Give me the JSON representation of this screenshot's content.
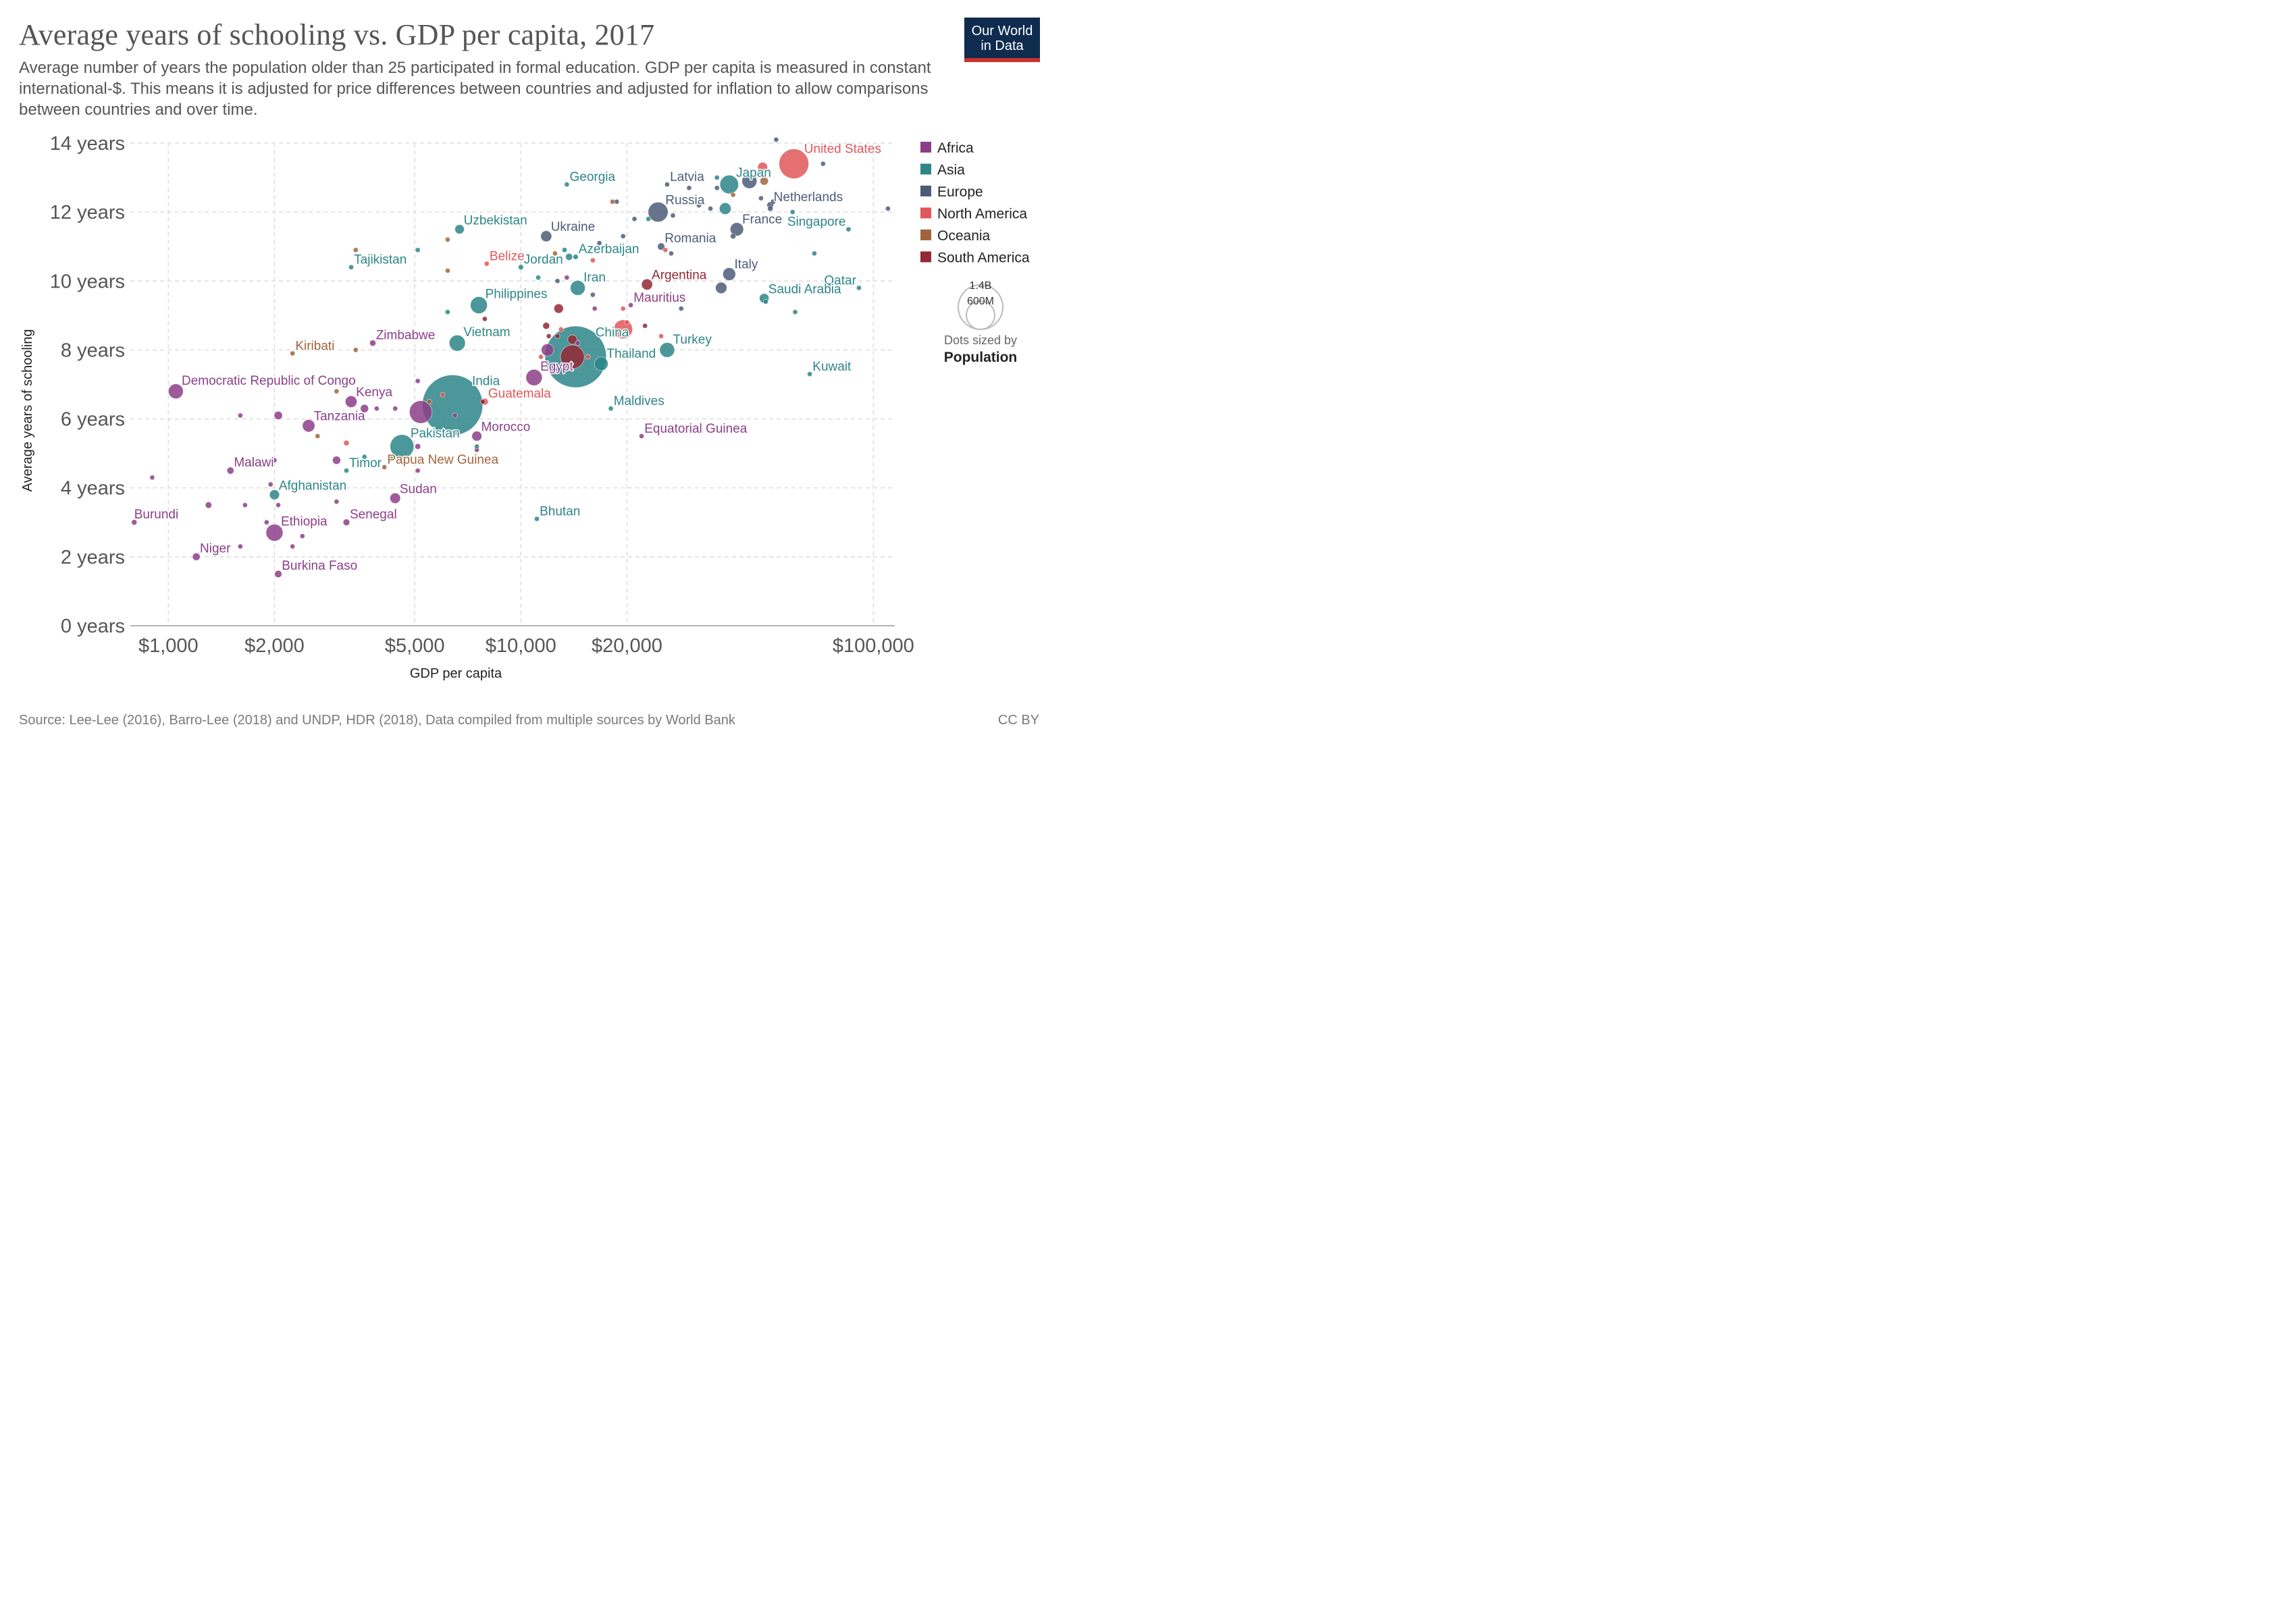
{
  "title": "Average years of schooling vs. GDP per capita, 2017",
  "subtitle": "Average number of years the population older than 25 participated in formal education. GDP per capita is measured in constant international-$. This means it is adjusted for price differences between countries and adjusted for inflation to allow comparisons between countries and over time.",
  "logo": {
    "line1": "Our World",
    "line2": "in Data"
  },
  "source": "Source: Lee-Lee (2016), Barro-Lee (2018) and UNDP, HDR (2018), Data compiled from multiple sources by World Bank",
  "license": "CC BY",
  "size_legend": {
    "large_label": "1.4B",
    "small_label": "600M",
    "note": "Dots sized by",
    "note_bold": "Population"
  },
  "chart_data": {
    "type": "scatter",
    "xlabel": "GDP per capita",
    "ylabel": "Average years of schooling",
    "x_scale": "log",
    "xlim": [
      780,
      115000
    ],
    "ylim": [
      0,
      14
    ],
    "x_ticks": [
      {
        "value": 1000,
        "label": "$1,000"
      },
      {
        "value": 2000,
        "label": "$2,000"
      },
      {
        "value": 5000,
        "label": "$5,000"
      },
      {
        "value": 10000,
        "label": "$10,000"
      },
      {
        "value": 20000,
        "label": "$20,000"
      },
      {
        "value": 100000,
        "label": "$100,000"
      }
    ],
    "y_ticks": [
      {
        "value": 0,
        "label": "0 years"
      },
      {
        "value": 2,
        "label": "2 years"
      },
      {
        "value": 4,
        "label": "4 years"
      },
      {
        "value": 6,
        "label": "6 years"
      },
      {
        "value": 8,
        "label": "8 years"
      },
      {
        "value": 10,
        "label": "10 years"
      },
      {
        "value": 12,
        "label": "12 years"
      },
      {
        "value": 14,
        "label": "14 years"
      }
    ],
    "grid": true,
    "legend_position": "right",
    "regions": [
      {
        "name": "Africa",
        "color": "#8c3e88"
      },
      {
        "name": "Asia",
        "color": "#2d8587"
      },
      {
        "name": "Europe",
        "color": "#4c5c78"
      },
      {
        "name": "North America",
        "color": "#e15759"
      },
      {
        "name": "Oceania",
        "color": "#a2643c"
      },
      {
        "name": "South America",
        "color": "#932834"
      }
    ],
    "labeled_points": [
      {
        "label": "United States",
        "region": "North America",
        "x": 59500,
        "y": 13.4,
        "pop_m": 325
      },
      {
        "label": "Japan",
        "region": "Asia",
        "x": 39000,
        "y": 12.8,
        "pop_m": 127
      },
      {
        "label": "Latvia",
        "region": "Europe",
        "x": 26000,
        "y": 12.8,
        "pop_m": 2
      },
      {
        "label": "Georgia",
        "region": "Asia",
        "x": 13500,
        "y": 12.8,
        "pop_m": 4
      },
      {
        "label": "Netherlands",
        "region": "Europe",
        "x": 51000,
        "y": 12.2,
        "pop_m": 17
      },
      {
        "label": "Russia",
        "region": "Europe",
        "x": 24500,
        "y": 12.0,
        "pop_m": 145
      },
      {
        "label": "Uzbekistan",
        "region": "Asia",
        "x": 6700,
        "y": 11.5,
        "pop_m": 32
      },
      {
        "label": "Ukraine",
        "region": "Europe",
        "x": 11800,
        "y": 11.3,
        "pop_m": 44
      },
      {
        "label": "France",
        "region": "Europe",
        "x": 41000,
        "y": 11.5,
        "pop_m": 65
      },
      {
        "label": "Singapore",
        "region": "Asia",
        "x": 85000,
        "y": 11.5,
        "pop_m": 6
      },
      {
        "label": "Romania",
        "region": "Europe",
        "x": 25000,
        "y": 11.0,
        "pop_m": 19
      },
      {
        "label": "Tajikistan",
        "region": "Asia",
        "x": 3300,
        "y": 10.4,
        "pop_m": 9
      },
      {
        "label": "Belize",
        "region": "North America",
        "x": 8000,
        "y": 10.5,
        "pop_m": 0.4
      },
      {
        "label": "Jordan",
        "region": "Asia",
        "x": 10000,
        "y": 10.4,
        "pop_m": 10
      },
      {
        "label": "Azerbaijan",
        "region": "Asia",
        "x": 14300,
        "y": 10.7,
        "pop_m": 10
      },
      {
        "label": "Italy",
        "region": "Europe",
        "x": 39000,
        "y": 10.2,
        "pop_m": 60
      },
      {
        "label": "Qatar",
        "region": "Asia",
        "x": 91000,
        "y": 9.8,
        "pop_m": 3
      },
      {
        "label": "Iran",
        "region": "Asia",
        "x": 14500,
        "y": 9.8,
        "pop_m": 81
      },
      {
        "label": "Argentina",
        "region": "South America",
        "x": 22800,
        "y": 9.9,
        "pop_m": 44
      },
      {
        "label": "Saudi Arabia",
        "region": "Asia",
        "x": 49000,
        "y": 9.5,
        "pop_m": 33
      },
      {
        "label": "Philippines",
        "region": "Asia",
        "x": 7600,
        "y": 9.3,
        "pop_m": 105
      },
      {
        "label": "Mauritius",
        "region": "Africa",
        "x": 20500,
        "y": 9.3,
        "pop_m": 1.3
      },
      {
        "label": "China",
        "region": "Asia",
        "x": 14300,
        "y": 7.8,
        "pop_m": 1390
      },
      {
        "label": "Vietnam",
        "region": "Asia",
        "x": 6600,
        "y": 8.2,
        "pop_m": 95
      },
      {
        "label": "Turkey",
        "region": "Asia",
        "x": 26000,
        "y": 8.0,
        "pop_m": 81
      },
      {
        "label": "Zimbabwe",
        "region": "Africa",
        "x": 3800,
        "y": 8.2,
        "pop_m": 14
      },
      {
        "label": "Kiribati",
        "region": "Oceania",
        "x": 2250,
        "y": 7.9,
        "pop_m": 0.1
      },
      {
        "label": "Thailand",
        "region": "Asia",
        "x": 16900,
        "y": 7.6,
        "pop_m": 69
      },
      {
        "label": "Kuwait",
        "region": "Asia",
        "x": 66000,
        "y": 7.3,
        "pop_m": 4
      },
      {
        "label": "Egypt",
        "region": "Africa",
        "x": 10900,
        "y": 7.2,
        "pop_m": 97
      },
      {
        "label": "Democratic Republic of Congo",
        "region": "Africa",
        "x": 1050,
        "y": 6.8,
        "pop_m": 81
      },
      {
        "label": "India",
        "region": "Asia",
        "x": 6400,
        "y": 6.4,
        "pop_m": 1340
      },
      {
        "label": "Kenya",
        "region": "Africa",
        "x": 3300,
        "y": 6.5,
        "pop_m": 50
      },
      {
        "label": "Guatemala",
        "region": "North America",
        "x": 7900,
        "y": 6.5,
        "pop_m": 17
      },
      {
        "label": "Maldives",
        "region": "Asia",
        "x": 18000,
        "y": 6.3,
        "pop_m": 0.4
      },
      {
        "label": "Tanzania",
        "region": "Africa",
        "x": 2500,
        "y": 5.8,
        "pop_m": 57
      },
      {
        "label": "Pakistan",
        "region": "Asia",
        "x": 4600,
        "y": 5.2,
        "pop_m": 207
      },
      {
        "label": "Morocco",
        "region": "Africa",
        "x": 7500,
        "y": 5.5,
        "pop_m": 36
      },
      {
        "label": "Equatorial Guinea",
        "region": "Africa",
        "x": 22000,
        "y": 5.5,
        "pop_m": 1.3
      },
      {
        "label": "Malawi",
        "region": "Africa",
        "x": 1500,
        "y": 4.5,
        "pop_m": 18
      },
      {
        "label": "Timor",
        "region": "Asia",
        "x": 3200,
        "y": 4.5,
        "pop_m": 1.3
      },
      {
        "label": "Papua New Guinea",
        "region": "Oceania",
        "x": 4100,
        "y": 4.6,
        "pop_m": 8
      },
      {
        "label": "Afghanistan",
        "region": "Asia",
        "x": 2000,
        "y": 3.8,
        "pop_m": 36
      },
      {
        "label": "Sudan",
        "region": "Africa",
        "x": 4400,
        "y": 3.7,
        "pop_m": 40
      },
      {
        "label": "Burundi",
        "region": "Africa",
        "x": 800,
        "y": 3.0,
        "pop_m": 11
      },
      {
        "label": "Ethiopia",
        "region": "Africa",
        "x": 2000,
        "y": 2.7,
        "pop_m": 105
      },
      {
        "label": "Senegal",
        "region": "Africa",
        "x": 3200,
        "y": 3.0,
        "pop_m": 16
      },
      {
        "label": "Bhutan",
        "region": "Asia",
        "x": 11100,
        "y": 3.1,
        "pop_m": 0.8
      },
      {
        "label": "Niger",
        "region": "Africa",
        "x": 1200,
        "y": 2.0,
        "pop_m": 21
      },
      {
        "label": "Burkina Faso",
        "region": "Africa",
        "x": 2050,
        "y": 1.5,
        "pop_m": 19
      }
    ],
    "other_points": [
      {
        "region": "Europe",
        "x": 53000,
        "y": 14.1,
        "pop_m": 8
      },
      {
        "region": "North America",
        "x": 48500,
        "y": 13.3,
        "pop_m": 36
      },
      {
        "region": "Europe",
        "x": 72000,
        "y": 13.4,
        "pop_m": 5
      },
      {
        "region": "Asia",
        "x": 36000,
        "y": 13.0,
        "pop_m": 4
      },
      {
        "region": "Europe",
        "x": 44500,
        "y": 12.9,
        "pop_m": 82
      },
      {
        "region": "Oceania",
        "x": 49000,
        "y": 12.9,
        "pop_m": 25
      },
      {
        "region": "Europe",
        "x": 30000,
        "y": 12.7,
        "pop_m": 2
      },
      {
        "region": "Europe",
        "x": 36000,
        "y": 12.7,
        "pop_m": 2
      },
      {
        "region": "Oceania",
        "x": 40000,
        "y": 12.5,
        "pop_m": 5
      },
      {
        "region": "Oceania",
        "x": 18200,
        "y": 12.3,
        "pop_m": 1
      },
      {
        "region": "Europe",
        "x": 18700,
        "y": 12.3,
        "pop_m": 2
      },
      {
        "region": "Europe",
        "x": 48000,
        "y": 12.4,
        "pop_m": 6
      },
      {
        "region": "Europe",
        "x": 52000,
        "y": 12.3,
        "pop_m": 10
      },
      {
        "region": "Europe",
        "x": 32000,
        "y": 12.2,
        "pop_m": 10
      },
      {
        "region": "Asia",
        "x": 38000,
        "y": 12.1,
        "pop_m": 50
      },
      {
        "region": "Europe",
        "x": 34500,
        "y": 12.1,
        "pop_m": 5
      },
      {
        "region": "Europe",
        "x": 51000,
        "y": 12.1,
        "pop_m": 11
      },
      {
        "region": "Europe",
        "x": 21000,
        "y": 11.8,
        "pop_m": 4
      },
      {
        "region": "Europe",
        "x": 27000,
        "y": 11.9,
        "pop_m": 4
      },
      {
        "region": "Asia",
        "x": 23000,
        "y": 11.8,
        "pop_m": 3
      },
      {
        "region": "Asia",
        "x": 59000,
        "y": 12.0,
        "pop_m": 0.5
      },
      {
        "region": "Europe",
        "x": 40000,
        "y": 11.3,
        "pop_m": 11
      },
      {
        "region": "Europe",
        "x": 19500,
        "y": 11.3,
        "pop_m": 3
      },
      {
        "region": "Europe",
        "x": 16700,
        "y": 11.1,
        "pop_m": 2
      },
      {
        "region": "Oceania",
        "x": 6200,
        "y": 11.2,
        "pop_m": 0.1
      },
      {
        "region": "Oceania",
        "x": 3400,
        "y": 10.9,
        "pop_m": 0.1
      },
      {
        "region": "Asia",
        "x": 5100,
        "y": 10.9,
        "pop_m": 6
      },
      {
        "region": "North America",
        "x": 25700,
        "y": 10.9,
        "pop_m": 0.3
      },
      {
        "region": "Europe",
        "x": 26700,
        "y": 10.8,
        "pop_m": 4
      },
      {
        "region": "Asia",
        "x": 13300,
        "y": 10.9,
        "pop_m": 9
      },
      {
        "region": "Asia",
        "x": 68000,
        "y": 10.8,
        "pop_m": 1.5
      },
      {
        "region": "Oceania",
        "x": 12500,
        "y": 10.8,
        "pop_m": 0.2
      },
      {
        "region": "Asia",
        "x": 13700,
        "y": 10.7,
        "pop_m": 18
      },
      {
        "region": "North America",
        "x": 16000,
        "y": 10.6,
        "pop_m": 0.3
      },
      {
        "region": "Oceania",
        "x": 6200,
        "y": 10.3,
        "pop_m": 0.2
      },
      {
        "region": "Asia",
        "x": 11200,
        "y": 10.1,
        "pop_m": 3
      },
      {
        "region": "Europe",
        "x": 12700,
        "y": 10.0,
        "pop_m": 2
      },
      {
        "region": "Africa",
        "x": 13500,
        "y": 10.1,
        "pop_m": 2
      },
      {
        "region": "Europe",
        "x": 37000,
        "y": 9.8,
        "pop_m": 47
      },
      {
        "region": "Europe",
        "x": 16000,
        "y": 9.6,
        "pop_m": 0.6
      },
      {
        "region": "Asia",
        "x": 28800,
        "y": 9.5,
        "pop_m": 0.1
      },
      {
        "region": "Asia",
        "x": 49500,
        "y": 9.4,
        "pop_m": 1.5
      },
      {
        "region": "North America",
        "x": 19500,
        "y": 9.2,
        "pop_m": 0.3
      },
      {
        "region": "South America",
        "x": 12800,
        "y": 9.2,
        "pop_m": 32
      },
      {
        "region": "Europe",
        "x": 28500,
        "y": 9.2,
        "pop_m": 0.6
      },
      {
        "region": "Asia",
        "x": 60000,
        "y": 9.1,
        "pop_m": 4
      },
      {
        "region": "Africa",
        "x": 16200,
        "y": 9.2,
        "pop_m": 0.1
      },
      {
        "region": "Asia",
        "x": 6200,
        "y": 9.1,
        "pop_m": 4
      },
      {
        "region": "South America",
        "x": 7900,
        "y": 8.9,
        "pop_m": 1
      },
      {
        "region": "North America",
        "x": 20000,
        "y": 8.8,
        "pop_m": 0.2
      },
      {
        "region": "South America",
        "x": 22500,
        "y": 8.7,
        "pop_m": 3
      },
      {
        "region": "South America",
        "x": 11800,
        "y": 8.7,
        "pop_m": 17
      },
      {
        "region": "North America",
        "x": 13000,
        "y": 8.6,
        "pop_m": 0.4
      },
      {
        "region": "North America",
        "x": 19500,
        "y": 8.6,
        "pop_m": 130
      },
      {
        "region": "South America",
        "x": 14000,
        "y": 8.3,
        "pop_m": 32
      },
      {
        "region": "North America",
        "x": 25000,
        "y": 8.4,
        "pop_m": 3
      },
      {
        "region": "South America",
        "x": 12000,
        "y": 8.4,
        "pop_m": 3
      },
      {
        "region": "South America",
        "x": 12700,
        "y": 8.4,
        "pop_m": 0.8
      },
      {
        "region": "Africa",
        "x": 14500,
        "y": 8.2,
        "pop_m": 2
      },
      {
        "region": "Africa",
        "x": 11900,
        "y": 8.0,
        "pop_m": 56
      },
      {
        "region": "North America",
        "x": 11400,
        "y": 7.8,
        "pop_m": 5
      },
      {
        "region": "North America",
        "x": 15500,
        "y": 7.8,
        "pop_m": 0.3
      },
      {
        "region": "South America",
        "x": 14000,
        "y": 7.8,
        "pop_m": 209
      },
      {
        "region": "Oceania",
        "x": 3400,
        "y": 8.0,
        "pop_m": 0.2
      },
      {
        "region": "Africa",
        "x": 5100,
        "y": 7.1,
        "pop_m": 2
      },
      {
        "region": "Oceania",
        "x": 3000,
        "y": 6.8,
        "pop_m": 0.6
      },
      {
        "region": "North America",
        "x": 6000,
        "y": 6.7,
        "pop_m": 6
      },
      {
        "region": "Africa",
        "x": 1600,
        "y": 6.1,
        "pop_m": 5
      },
      {
        "region": "Africa",
        "x": 2050,
        "y": 6.1,
        "pop_m": 25
      },
      {
        "region": "Africa",
        "x": 3600,
        "y": 6.3,
        "pop_m": 24
      },
      {
        "region": "Africa",
        "x": 3900,
        "y": 6.3,
        "pop_m": 8
      },
      {
        "region": "Africa",
        "x": 4400,
        "y": 6.3,
        "pop_m": 6
      },
      {
        "region": "Africa",
        "x": 5200,
        "y": 6.2,
        "pop_m": 190
      },
      {
        "region": "Oceania",
        "x": 5500,
        "y": 6.5,
        "pop_m": 0.3
      },
      {
        "region": "South America",
        "x": 7800,
        "y": 6.5,
        "pop_m": 7
      },
      {
        "region": "Africa",
        "x": 6500,
        "y": 6.1,
        "pop_m": 2
      },
      {
        "region": "Oceania",
        "x": 2650,
        "y": 5.5,
        "pop_m": 0.6
      },
      {
        "region": "North America",
        "x": 3200,
        "y": 5.3,
        "pop_m": 11
      },
      {
        "region": "Africa",
        "x": 5100,
        "y": 5.2,
        "pop_m": 12
      },
      {
        "region": "Asia",
        "x": 7500,
        "y": 5.2,
        "pop_m": 0.5
      },
      {
        "region": "Africa",
        "x": 7500,
        "y": 5.1,
        "pop_m": 2
      },
      {
        "region": "Asia",
        "x": 3600,
        "y": 4.9,
        "pop_m": 0.5
      },
      {
        "region": "Asia",
        "x": 4300,
        "y": 4.9,
        "pop_m": 0.8
      },
      {
        "region": "Africa",
        "x": 2000,
        "y": 4.8,
        "pop_m": 8
      },
      {
        "region": "Africa",
        "x": 3000,
        "y": 4.8,
        "pop_m": 24
      },
      {
        "region": "Africa",
        "x": 5100,
        "y": 4.5,
        "pop_m": 2
      },
      {
        "region": "Africa",
        "x": 900,
        "y": 4.3,
        "pop_m": 5
      },
      {
        "region": "Africa",
        "x": 1950,
        "y": 4.1,
        "pop_m": 8
      },
      {
        "region": "Africa",
        "x": 1300,
        "y": 3.5,
        "pop_m": 15
      },
      {
        "region": "Africa",
        "x": 1650,
        "y": 3.5,
        "pop_m": 5
      },
      {
        "region": "Africa",
        "x": 2050,
        "y": 3.5,
        "pop_m": 4
      },
      {
        "region": "Africa",
        "x": 3000,
        "y": 3.6,
        "pop_m": 4
      },
      {
        "region": "Africa",
        "x": 1900,
        "y": 3.0,
        "pop_m": 8
      },
      {
        "region": "Africa",
        "x": 2400,
        "y": 2.6,
        "pop_m": 2
      },
      {
        "region": "Africa",
        "x": 1600,
        "y": 2.3,
        "pop_m": 5
      },
      {
        "region": "Africa",
        "x": 2250,
        "y": 2.3,
        "pop_m": 2
      },
      {
        "region": "Europe",
        "x": 110000,
        "y": 12.1,
        "pop_m": 0.6
      }
    ]
  }
}
